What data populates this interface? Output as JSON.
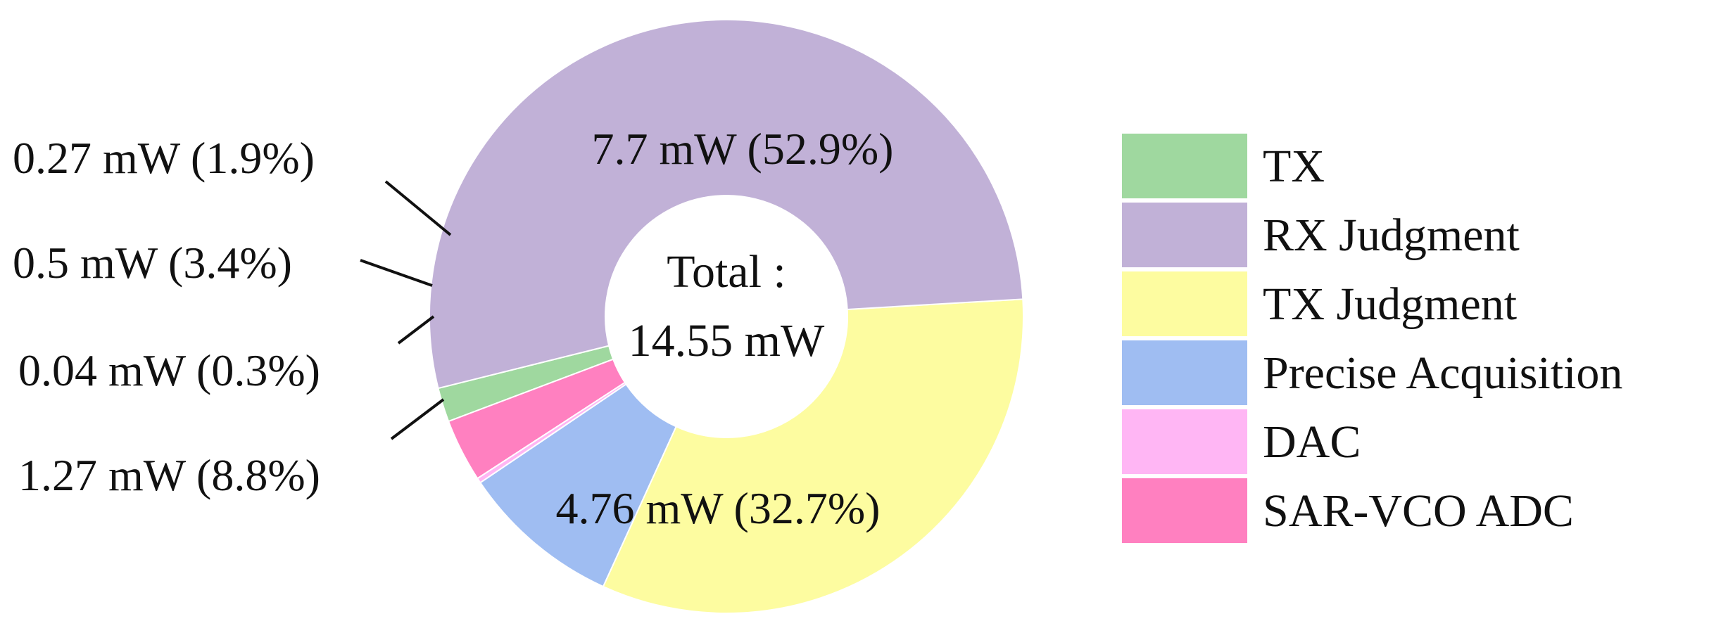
{
  "chart_data": {
    "type": "pie",
    "variant": "donut",
    "unit": "mW",
    "center_label": [
      "Total :",
      "14.55 mW"
    ],
    "total": 14.55,
    "series": [
      {
        "name": "TX",
        "value": 0.27,
        "percent": 1.9,
        "label": "0.27 mW (1.9%)",
        "color": "#9fd89f"
      },
      {
        "name": "SAR-VCO ADC",
        "value": 0.5,
        "percent": 3.4,
        "label": "0.5 mW (3.4%)",
        "color": "#ff80c0"
      },
      {
        "name": "DAC",
        "value": 0.04,
        "percent": 0.3,
        "label": "0.04 mW (0.3%)",
        "color": "#ffb6f4"
      },
      {
        "name": "Precise Acquisition",
        "value": 1.27,
        "percent": 8.8,
        "label": "1.27 mW (8.8%)",
        "color": "#9fbdf2"
      },
      {
        "name": "TX Judgment",
        "value": 4.76,
        "percent": 32.7,
        "label": "4.76 mW (32.7%)",
        "color": "#fdfca0"
      },
      {
        "name": "RX Judgment",
        "value": 7.7,
        "percent": 52.9,
        "label": "7.7 mW (52.9%)",
        "color": "#c1b1d7"
      }
    ],
    "legend": {
      "position": "right",
      "entries": [
        "TX",
        "RX Judgment",
        "TX Judgment",
        "Precise Acquisition",
        "DAC",
        "SAR-VCO ADC"
      ]
    },
    "start_angle_deg": 194,
    "direction": "counterclockwise"
  }
}
